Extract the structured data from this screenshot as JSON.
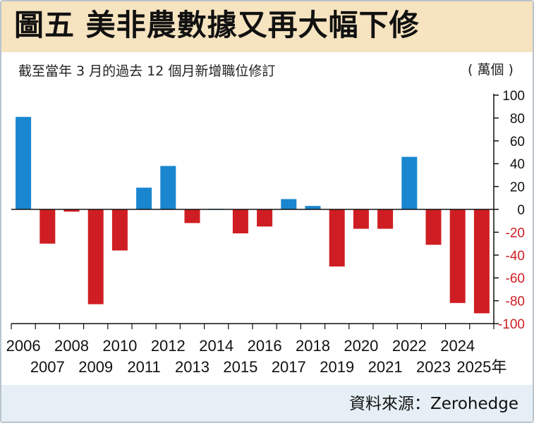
{
  "title": "圖五  美非農數據又再大幅下修",
  "subtitle": "截至當年 3 月的過去 12 個月新增職位修訂",
  "unit": "( 萬個 )",
  "source": "資料來源：Zerohedge",
  "x_suffix": "年",
  "colors": {
    "positive": "#1a86cf",
    "negative": "#cf1e23",
    "title_band": "#f6e3bf",
    "footer_band": "#e6eff5"
  },
  "chart_data": {
    "type": "bar",
    "title": "美非農數據又再大幅下修",
    "categories": [
      "2006",
      "2007",
      "2008",
      "2009",
      "2010",
      "2011",
      "2012",
      "2013",
      "2014",
      "2015",
      "2016",
      "2017",
      "2018",
      "2019",
      "2020",
      "2021",
      "2022",
      "2023",
      "2024",
      "2025"
    ],
    "values": [
      81,
      -30,
      -2,
      -83,
      -36,
      19,
      38,
      -12,
      0.5,
      -21,
      -15,
      9,
      3,
      -50,
      -17,
      -17,
      46,
      -31,
      -82,
      -91
    ],
    "ylim": [
      -100,
      100
    ],
    "yticks": [
      100,
      80,
      60,
      40,
      20,
      0,
      -20,
      -40,
      -60,
      -80,
      -100
    ],
    "ylabel": "( 萬個 )",
    "xlabel": "",
    "y_axis_position": "right",
    "grid": false
  }
}
